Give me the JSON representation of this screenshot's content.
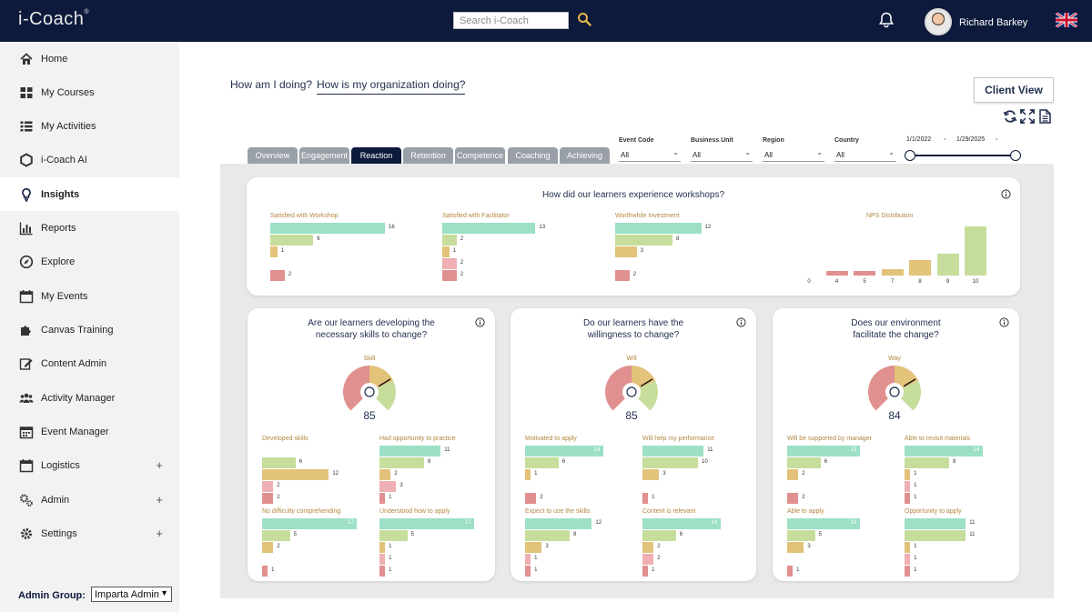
{
  "app": {
    "logo": "i-Coach",
    "logo_mark": "®"
  },
  "header": {
    "search_placeholder": "Search i-Coach",
    "user_name": "Richard Barkey"
  },
  "sidebar": {
    "items": [
      {
        "label": "Home",
        "icon": "home-icon"
      },
      {
        "label": "My Courses",
        "icon": "grid-icon"
      },
      {
        "label": "My Activities",
        "icon": "list-icon"
      },
      {
        "label": "i-Coach AI",
        "icon": "hexagon-icon"
      },
      {
        "label": "Insights",
        "icon": "lightbulb-icon"
      },
      {
        "label": "Reports",
        "icon": "bar-chart-icon"
      },
      {
        "label": "Explore",
        "icon": "compass-icon"
      },
      {
        "label": "My Events",
        "icon": "calendar-icon"
      },
      {
        "label": "Canvas Training",
        "icon": "puzzle-icon"
      },
      {
        "label": "Content Admin",
        "icon": "edit-icon"
      },
      {
        "label": "Activity Manager",
        "icon": "users-icon"
      },
      {
        "label": "Event Manager",
        "icon": "calendar-grid-icon"
      },
      {
        "label": "Logistics",
        "icon": "calendar-icon"
      },
      {
        "label": "Admin",
        "icon": "gears-icon"
      },
      {
        "label": "Settings",
        "icon": "gear-icon"
      }
    ],
    "expandable_mark": "+",
    "admin_group_label": "Admin Group:",
    "admin_group_value": "Imparta Admin"
  },
  "main": {
    "view_links": [
      "How am I doing?",
      "How is my organization doing?"
    ],
    "client_view_label": "Client View",
    "tabs": [
      "Overview",
      "Engagement",
      "Reaction",
      "Retention",
      "Competence",
      "Coaching",
      "Achieving"
    ],
    "active_tab": "Reaction",
    "filters": [
      {
        "label": "Event Code",
        "value": "All"
      },
      {
        "label": "Business Unit",
        "value": "All"
      },
      {
        "label": "Region",
        "value": "All"
      },
      {
        "label": "Country",
        "value": "All"
      }
    ],
    "date_range": {
      "start": "1/1/2022",
      "end": "1/29/2025"
    }
  },
  "colors": {
    "teal": "#9de0c6",
    "green": "#c6dd9c",
    "yellow": "#e3c27a",
    "pink": "#eeb0b3",
    "red": "#e0908e",
    "navy": "#0d1a3c",
    "gold_label": "#b2873f"
  },
  "workshop_card": {
    "title": "How did our learners experience workshops?",
    "charts": [
      {
        "title": "Satisfied with Workshop",
        "values": [
          16,
          6,
          1,
          0,
          2
        ]
      },
      {
        "title": "Satisfied with Facilitator",
        "values": [
          13,
          2,
          1,
          2,
          2
        ]
      },
      {
        "title": "Worthwhile Investment",
        "values": [
          12,
          8,
          3,
          0,
          2
        ]
      }
    ],
    "nps": {
      "title": "NPS Distribution",
      "categories": [
        "0",
        "4",
        "5",
        "7",
        "8",
        "9",
        "10"
      ],
      "values": [
        0,
        1,
        1,
        1.3,
        3.1,
        4.4,
        10
      ]
    }
  },
  "dimension_cards": [
    {
      "title_line1": "Are our learners developing the",
      "title_line2": "necessary skills to change?",
      "gauge_label": "Skill",
      "score": "85",
      "charts": [
        {
          "title": "Developed skills",
          "values": [
            0,
            6,
            12,
            2,
            2
          ],
          "labels": [
            "",
            "6",
            "12",
            "2",
            "2"
          ]
        },
        {
          "title": "Had opportunity to practice",
          "values": [
            11,
            8,
            2,
            3,
            1
          ],
          "labels": [
            "11",
            "8",
            "2",
            "3",
            "1"
          ]
        },
        {
          "title": "No difficulty comprehending",
          "values": [
            17,
            5,
            2,
            0,
            1
          ],
          "labels": [
            "17",
            "5",
            "2",
            "",
            "1"
          ]
        },
        {
          "title": "Understood how to apply",
          "values": [
            17,
            5,
            1,
            1,
            1
          ],
          "labels": [
            "17",
            "5",
            "1",
            "1",
            "1"
          ]
        }
      ]
    },
    {
      "title_line1": "Do our learners have the",
      "title_line2": "willingness to change?",
      "gauge_label": "Will",
      "score": "85",
      "charts": [
        {
          "title": "Motivated to apply",
          "values": [
            14,
            6,
            1,
            0,
            2
          ],
          "labels": [
            "14",
            "6",
            "1",
            "",
            "2"
          ]
        },
        {
          "title": "Will help my performance",
          "values": [
            11,
            10,
            3,
            0,
            1
          ],
          "labels": [
            "11",
            "10",
            "3",
            "",
            "1"
          ]
        },
        {
          "title": "Expect to use the skills",
          "values": [
            12,
            8,
            3,
            1,
            1
          ],
          "labels": [
            "12",
            "8",
            "3",
            "1",
            "1"
          ]
        },
        {
          "title": "Content is relevant",
          "values": [
            14,
            6,
            2,
            2,
            1
          ],
          "labels": [
            "14",
            "6",
            "2",
            "2",
            "1"
          ]
        }
      ]
    },
    {
      "title_line1": "Does our environment",
      "title_line2": "facilitate the change?",
      "gauge_label": "Way",
      "score": "84",
      "charts": [
        {
          "title": "Will be supported by manager",
          "values": [
            13,
            6,
            2,
            0,
            2
          ],
          "labels": [
            "13",
            "6",
            "2",
            "",
            "2"
          ]
        },
        {
          "title": "Able to revisit materials",
          "values": [
            14,
            8,
            1,
            1,
            1
          ],
          "labels": [
            "14",
            "8",
            "1",
            "1",
            "1"
          ]
        },
        {
          "title": "Able to apply",
          "values": [
            13,
            5,
            3,
            0,
            1
          ],
          "labels": [
            "13",
            "5",
            "3",
            "",
            "1"
          ]
        },
        {
          "title": "Opportunity to apply",
          "values": [
            11,
            11,
            1,
            1,
            1
          ],
          "labels": [
            "11",
            "11",
            "1",
            "1",
            "1"
          ]
        }
      ]
    }
  ]
}
